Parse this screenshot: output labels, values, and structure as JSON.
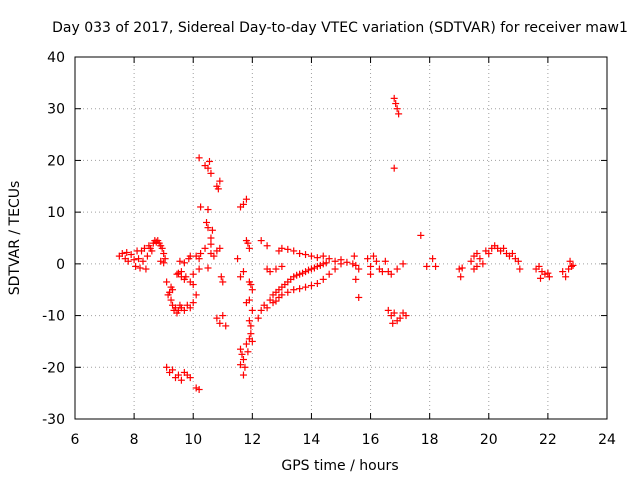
{
  "chart_data": {
    "type": "scatter",
    "title": "Day 033 of 2017, Sidereal Day-to-day VTEC variation (SDTVAR) for receiver maw1",
    "xlabel": "GPS time / hours",
    "ylabel": "SDTVAR / TECUs",
    "xlim": [
      6,
      24
    ],
    "ylim": [
      -30,
      40
    ],
    "xticks": [
      6,
      8,
      10,
      12,
      14,
      16,
      18,
      20,
      22,
      24
    ],
    "yticks": [
      -30,
      -20,
      -10,
      0,
      10,
      20,
      30,
      40
    ],
    "marker": "+",
    "color": "#ff0000",
    "grid": true,
    "series": [
      {
        "name": "maw1",
        "points": [
          [
            7.5,
            1.5
          ],
          [
            7.6,
            2.0
          ],
          [
            7.7,
            1.0
          ],
          [
            7.75,
            2.2
          ],
          [
            7.8,
            0.5
          ],
          [
            7.9,
            1.8
          ],
          [
            8.0,
            0.8
          ],
          [
            8.05,
            -0.5
          ],
          [
            8.1,
            2.5
          ],
          [
            8.15,
            1.0
          ],
          [
            8.2,
            -0.8
          ],
          [
            8.25,
            2.5
          ],
          [
            8.3,
            0.5
          ],
          [
            8.35,
            3.0
          ],
          [
            8.4,
            -1.0
          ],
          [
            8.45,
            1.5
          ],
          [
            8.5,
            3.5
          ],
          [
            8.55,
            3.0
          ],
          [
            8.6,
            2.5
          ],
          [
            8.65,
            4.0
          ],
          [
            8.7,
            4.5
          ],
          [
            8.75,
            4.2
          ],
          [
            8.8,
            4.5
          ],
          [
            8.85,
            4.0
          ],
          [
            8.9,
            3.5
          ],
          [
            8.95,
            3.0
          ],
          [
            9.0,
            2.0
          ],
          [
            9.05,
            1.0
          ],
          [
            8.9,
            0.5
          ],
          [
            9.0,
            0.2
          ],
          [
            9.1,
            -3.5
          ],
          [
            9.15,
            -6.0
          ],
          [
            9.2,
            -5.5
          ],
          [
            9.25,
            -7.0
          ],
          [
            9.3,
            -8.0
          ],
          [
            9.35,
            -9.0
          ],
          [
            9.4,
            -8.5
          ],
          [
            9.45,
            -9.5
          ],
          [
            9.5,
            -9.0
          ],
          [
            9.55,
            -8.0
          ],
          [
            9.6,
            -8.5
          ],
          [
            9.7,
            -9.0
          ],
          [
            9.8,
            -8.0
          ],
          [
            9.9,
            -8.5
          ],
          [
            10.0,
            -7.5
          ],
          [
            9.25,
            -4.5
          ],
          [
            9.3,
            -5.0
          ],
          [
            9.45,
            -2.0
          ],
          [
            9.5,
            -1.8
          ],
          [
            9.6,
            -2.5
          ],
          [
            9.7,
            -3.0
          ],
          [
            9.75,
            -2.5
          ],
          [
            9.6,
            -1.5
          ],
          [
            9.55,
            0.5
          ],
          [
            9.7,
            0.2
          ],
          [
            9.9,
            1.5
          ],
          [
            10.0,
            -2.0
          ],
          [
            9.9,
            -3.5
          ],
          [
            10.0,
            -4.0
          ],
          [
            10.1,
            -6.0
          ],
          [
            9.85,
            1.0
          ],
          [
            10.1,
            1.5
          ],
          [
            10.2,
            -1.0
          ],
          [
            9.1,
            -20.0
          ],
          [
            9.2,
            -21.0
          ],
          [
            9.3,
            -20.5
          ],
          [
            9.4,
            -22.0
          ],
          [
            9.5,
            -21.5
          ],
          [
            9.6,
            -22.5
          ],
          [
            9.7,
            -21.0
          ],
          [
            9.8,
            -21.5
          ],
          [
            9.9,
            -22.0
          ],
          [
            10.1,
            -24.0
          ],
          [
            10.2,
            -24.3
          ],
          [
            10.2,
            20.5
          ],
          [
            10.4,
            19.0
          ],
          [
            10.5,
            18.5
          ],
          [
            10.55,
            19.8
          ],
          [
            10.6,
            17.5
          ],
          [
            10.8,
            15.0
          ],
          [
            10.9,
            16.0
          ],
          [
            10.85,
            14.5
          ],
          [
            10.25,
            11.0
          ],
          [
            10.5,
            10.5
          ],
          [
            10.45,
            8.0
          ],
          [
            10.5,
            7.0
          ],
          [
            10.65,
            6.5
          ],
          [
            10.6,
            5.0
          ],
          [
            10.6,
            3.8
          ],
          [
            10.4,
            3.0
          ],
          [
            10.25,
            2.0
          ],
          [
            10.2,
            1.0
          ],
          [
            10.5,
            -0.8
          ],
          [
            10.6,
            2.0
          ],
          [
            10.7,
            1.5
          ],
          [
            10.8,
            2.5
          ],
          [
            10.9,
            3.0
          ],
          [
            10.95,
            -2.5
          ],
          [
            11.0,
            -3.5
          ],
          [
            10.8,
            -10.5
          ],
          [
            10.9,
            -11.5
          ],
          [
            11.0,
            -10.0
          ],
          [
            11.1,
            -12.0
          ],
          [
            11.6,
            11.0
          ],
          [
            11.7,
            11.5
          ],
          [
            11.8,
            12.5
          ],
          [
            11.85,
            4.0
          ],
          [
            11.9,
            3.0
          ],
          [
            11.8,
            4.5
          ],
          [
            11.5,
            1.0
          ],
          [
            11.7,
            -1.5
          ],
          [
            11.6,
            -2.5
          ],
          [
            11.9,
            -3.5
          ],
          [
            11.95,
            -4.0
          ],
          [
            12.0,
            -5.0
          ],
          [
            11.8,
            -7.5
          ],
          [
            11.9,
            -7.0
          ],
          [
            12.0,
            -9.0
          ],
          [
            11.9,
            -11.0
          ],
          [
            11.95,
            -12.0
          ],
          [
            11.6,
            -16.5
          ],
          [
            11.65,
            -17.5
          ],
          [
            11.7,
            -18.5
          ],
          [
            11.6,
            -19.5
          ],
          [
            11.75,
            -20.0
          ],
          [
            11.7,
            -21.5
          ],
          [
            11.8,
            -15.5
          ],
          [
            11.9,
            -14.5
          ],
          [
            11.95,
            -13.5
          ],
          [
            12.0,
            -15.0
          ],
          [
            11.85,
            -17.0
          ],
          [
            12.3,
            4.5
          ],
          [
            12.5,
            -1.0
          ],
          [
            12.5,
            3.5
          ],
          [
            12.2,
            -10.5
          ],
          [
            12.3,
            -9.0
          ],
          [
            12.4,
            -8.0
          ],
          [
            12.5,
            -8.5
          ],
          [
            12.6,
            -7.0
          ],
          [
            12.7,
            -6.0
          ],
          [
            12.8,
            -5.5
          ],
          [
            12.9,
            -5.0
          ],
          [
            13.0,
            -4.5
          ],
          [
            13.1,
            -4.0
          ],
          [
            13.2,
            -3.5
          ],
          [
            13.3,
            -3.0
          ],
          [
            13.4,
            -2.5
          ],
          [
            13.5,
            -2.2
          ],
          [
            13.6,
            -2.0
          ],
          [
            13.7,
            -1.8
          ],
          [
            13.8,
            -1.5
          ],
          [
            13.9,
            -1.2
          ],
          [
            14.0,
            -1.0
          ],
          [
            14.1,
            -0.8
          ],
          [
            14.2,
            -0.5
          ],
          [
            14.3,
            -0.3
          ],
          [
            14.4,
            0.0
          ],
          [
            14.5,
            0.2
          ],
          [
            12.7,
            -7.5
          ],
          [
            12.8,
            -7.2
          ],
          [
            12.9,
            -6.5
          ],
          [
            13.0,
            -6.0
          ],
          [
            13.2,
            -5.5
          ],
          [
            13.4,
            -5.0
          ],
          [
            13.6,
            -4.8
          ],
          [
            13.8,
            -4.5
          ],
          [
            14.0,
            -4.2
          ],
          [
            14.2,
            -3.8
          ],
          [
            14.4,
            -3.0
          ],
          [
            14.6,
            -2.0
          ],
          [
            14.8,
            -1.0
          ],
          [
            15.0,
            0.0
          ],
          [
            12.6,
            -1.5
          ],
          [
            12.8,
            -1.0
          ],
          [
            13.0,
            -0.5
          ],
          [
            12.9,
            2.5
          ],
          [
            13.0,
            3.0
          ],
          [
            13.2,
            2.8
          ],
          [
            13.4,
            2.5
          ],
          [
            13.6,
            2.0
          ],
          [
            13.8,
            1.8
          ],
          [
            14.0,
            1.5
          ],
          [
            14.2,
            1.2
          ],
          [
            14.4,
            1.5
          ],
          [
            14.6,
            1.0
          ],
          [
            14.8,
            0.5
          ],
          [
            15.0,
            0.8
          ],
          [
            15.2,
            0.3
          ],
          [
            15.4,
            0.0
          ],
          [
            15.5,
            -0.3
          ],
          [
            15.6,
            -1.0
          ],
          [
            15.45,
            1.5
          ],
          [
            15.5,
            -3.0
          ],
          [
            15.6,
            -6.5
          ],
          [
            15.9,
            1.0
          ],
          [
            16.0,
            -0.5
          ],
          [
            16.1,
            1.5
          ],
          [
            16.2,
            0.5
          ],
          [
            16.3,
            -1.0
          ],
          [
            16.4,
            -1.5
          ],
          [
            16.5,
            0.5
          ],
          [
            16.6,
            -1.5
          ],
          [
            16.7,
            -2.0
          ],
          [
            16.0,
            -2.0
          ],
          [
            16.6,
            -9.0
          ],
          [
            16.7,
            -10.0
          ],
          [
            16.8,
            -9.5
          ],
          [
            16.75,
            -11.5
          ],
          [
            16.9,
            -11.0
          ],
          [
            17.0,
            -10.5
          ],
          [
            17.1,
            -9.5
          ],
          [
            17.2,
            -10.0
          ],
          [
            16.9,
            -1.0
          ],
          [
            17.1,
            0.0
          ],
          [
            16.8,
            32.0
          ],
          [
            16.85,
            31.0
          ],
          [
            16.9,
            30.0
          ],
          [
            16.95,
            29.0
          ],
          [
            16.8,
            18.5
          ],
          [
            17.7,
            5.5
          ],
          [
            17.9,
            -0.5
          ],
          [
            18.1,
            1.0
          ],
          [
            18.2,
            -0.5
          ],
          [
            19.0,
            -1.0
          ],
          [
            19.05,
            -2.5
          ],
          [
            19.1,
            -0.8
          ],
          [
            19.4,
            0.5
          ],
          [
            19.5,
            1.5
          ],
          [
            19.6,
            2.0
          ],
          [
            19.7,
            1.0
          ],
          [
            19.8,
            0.0
          ],
          [
            19.5,
            -1.0
          ],
          [
            19.6,
            -0.5
          ],
          [
            19.9,
            2.5
          ],
          [
            20.0,
            2.0
          ],
          [
            20.1,
            3.0
          ],
          [
            20.2,
            3.5
          ],
          [
            20.3,
            3.0
          ],
          [
            20.4,
            2.5
          ],
          [
            20.5,
            3.0
          ],
          [
            20.6,
            2.0
          ],
          [
            20.7,
            1.5
          ],
          [
            20.8,
            2.0
          ],
          [
            20.9,
            1.0
          ],
          [
            21.0,
            0.5
          ],
          [
            21.05,
            -1.0
          ],
          [
            21.6,
            -1.0
          ],
          [
            21.7,
            -0.5
          ],
          [
            21.8,
            -1.5
          ],
          [
            21.9,
            -2.0
          ],
          [
            22.0,
            -1.8
          ],
          [
            22.05,
            -2.5
          ],
          [
            21.75,
            -2.8
          ],
          [
            22.5,
            -1.5
          ],
          [
            22.6,
            -2.5
          ],
          [
            22.7,
            -1.0
          ],
          [
            22.8,
            -0.5
          ],
          [
            22.75,
            0.5
          ],
          [
            22.85,
            -0.3
          ]
        ]
      }
    ]
  }
}
